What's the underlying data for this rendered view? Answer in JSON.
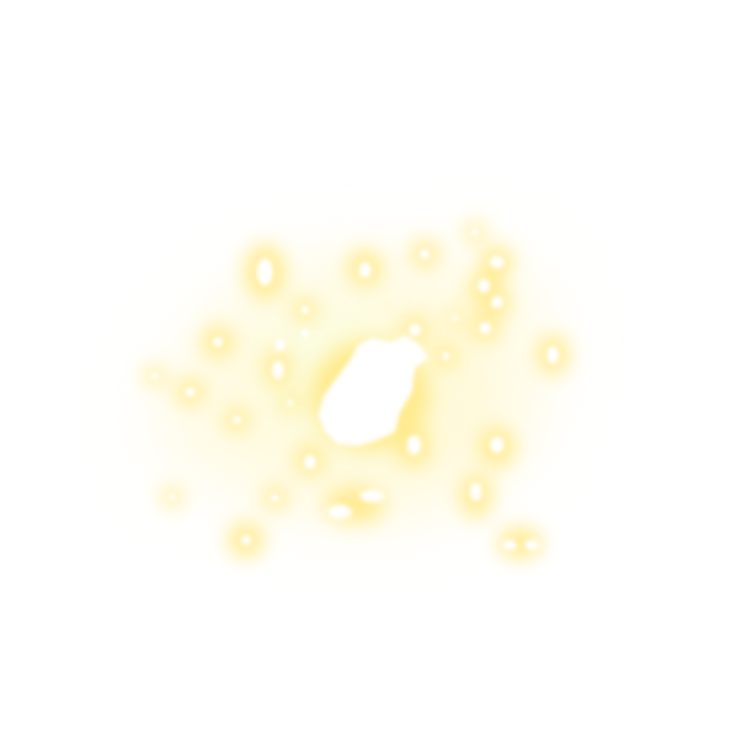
{
  "image": {
    "subject": "glowing-light-particles",
    "colors": {
      "background": "#ffffff",
      "glow_outer": "#fff3b0",
      "glow_mid": "#ffe880",
      "glow_green_tint": "#f4ffd0",
      "core": "#ffffff"
    }
  }
}
